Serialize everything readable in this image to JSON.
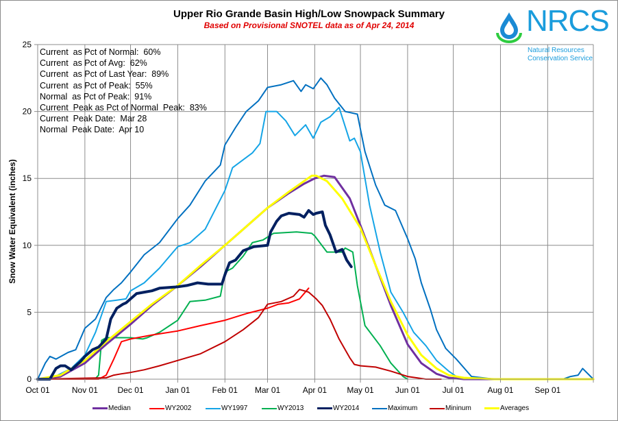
{
  "header": {
    "title": "Upper Rio Grande Basin High/Low Snowpack Summary",
    "subtitle": "Based on Provisional SNOTEL data as of Apr 24, 2014"
  },
  "logo": {
    "name": "NRCS",
    "line1": "Natural Resources",
    "line2": "Conservation Service",
    "drop_color": "#1a8ad4",
    "arc_color": "#2ecc40"
  },
  "stats": [
    "Current  as Pct of Normal:  60%",
    "Current  as Pct of Avg:  62%",
    "Current  as Pct of Last Year:  89%",
    "Current  as Pct of Peak:  55%",
    "Normal  as Pct of Peak:  91%",
    "Current  Peak as Pct of Normal  Peak:  83%",
    "Current  Peak Date:  Mar 28",
    "Normal  Peak Date:  Apr 10"
  ],
  "chart_data": {
    "type": "line",
    "title": "Upper Rio Grande Basin High/Low Snowpack Summary",
    "subtitle": "Based on Provisional SNOTEL data as of Apr 24, 2014",
    "xlabel": "",
    "ylabel": "Snow Water Equivalent (inches)",
    "ylim": [
      0,
      25
    ],
    "yticks": [
      "0",
      "5",
      "10",
      "15",
      "20",
      "25"
    ],
    "xlim_days": [
      0,
      365
    ],
    "xticks": [
      {
        "label": "Oct 01",
        "day": 0
      },
      {
        "label": "Nov 01",
        "day": 31
      },
      {
        "label": "Dec 01",
        "day": 61
      },
      {
        "label": "Jan 01",
        "day": 92
      },
      {
        "label": "Feb 01",
        "day": 123
      },
      {
        "label": "Mar 01",
        "day": 151
      },
      {
        "label": "Apr 01",
        "day": 182
      },
      {
        "label": "May 01",
        "day": 212
      },
      {
        "label": "Jun 01",
        "day": 243
      },
      {
        "label": "Jul 01",
        "day": 273
      },
      {
        "label": "Aug 01",
        "day": 304
      },
      {
        "label": "Sep 01",
        "day": 335
      }
    ],
    "grid": true,
    "legend_position": "bottom",
    "series": [
      {
        "name": "Median",
        "color": "#7030a0",
        "width": 3,
        "x": [
          0,
          15,
          31,
          45,
          61,
          75,
          92,
          107,
          123,
          137,
          151,
          165,
          175,
          182,
          188,
          195,
          205,
          212,
          222,
          232,
          243,
          252,
          262,
          270,
          280,
          300,
          365
        ],
        "y": [
          0,
          0.2,
          1.2,
          2.6,
          4.1,
          5.5,
          7.0,
          8.4,
          10.0,
          11.4,
          12.8,
          13.9,
          14.6,
          15.0,
          15.2,
          15.1,
          13.5,
          11.5,
          8.5,
          5.5,
          2.6,
          1.2,
          0.4,
          0.1,
          0,
          0,
          0
        ]
      },
      {
        "name": "WY2002",
        "color": "#ff0000",
        "width": 2,
        "x": [
          0,
          40,
          45,
          50,
          55,
          61,
          75,
          92,
          107,
          123,
          137,
          151,
          158,
          165,
          172,
          178
        ],
        "y": [
          0,
          0,
          0.3,
          1.5,
          2.8,
          3.0,
          3.3,
          3.6,
          4.0,
          4.4,
          4.9,
          5.3,
          5.6,
          5.7,
          6.0,
          6.8
        ]
      },
      {
        "name": "WY1997",
        "color": "#14a4e6",
        "width": 2,
        "x": [
          0,
          8,
          15,
          22,
          31,
          38,
          45,
          52,
          58,
          61,
          70,
          80,
          92,
          100,
          110,
          123,
          128,
          135,
          141,
          146,
          150,
          157,
          163,
          169,
          176,
          181,
          186,
          192,
          198,
          205,
          208,
          212,
          218,
          225,
          232,
          240,
          247,
          255,
          262,
          270,
          275,
          280
        ],
        "y": [
          0,
          0,
          0.4,
          0.8,
          1.8,
          3.5,
          5.8,
          5.9,
          6.0,
          6.6,
          7.2,
          8.3,
          9.9,
          10.2,
          11.2,
          14.1,
          15.8,
          16.4,
          16.9,
          17.6,
          20.0,
          20.0,
          19.3,
          18.2,
          19.0,
          18.0,
          19.2,
          19.6,
          20.3,
          17.8,
          18.0,
          17.0,
          13.0,
          9.5,
          6.5,
          5.0,
          3.5,
          2.5,
          1.4,
          0.6,
          0.2,
          0
        ]
      },
      {
        "name": "WY2013",
        "color": "#00b050",
        "width": 2,
        "x": [
          0,
          30,
          38,
          40,
          42,
          45,
          61,
          69,
          72,
          80,
          92,
          100,
          110,
          120,
          123,
          128,
          135,
          141,
          148,
          155,
          170,
          180,
          182,
          190,
          195,
          200,
          202,
          207,
          210,
          215,
          225,
          232,
          240,
          243
        ],
        "y": [
          0,
          0,
          0.05,
          0.3,
          2.9,
          3.1,
          3.1,
          3.0,
          3.1,
          3.5,
          4.4,
          5.8,
          5.9,
          6.2,
          8.0,
          8.3,
          9.2,
          10.2,
          10.4,
          10.9,
          11.0,
          10.9,
          10.7,
          9.5,
          9.5,
          9.5,
          9.8,
          9.5,
          7.0,
          4.0,
          2.5,
          1.2,
          0.2,
          0
        ]
      },
      {
        "name": "WY2014",
        "color": "#002060",
        "width": 4,
        "x": [
          0,
          8,
          12,
          15,
          18,
          22,
          28,
          31,
          36,
          40,
          45,
          48,
          52,
          56,
          58,
          61,
          65,
          70,
          75,
          80,
          92,
          98,
          105,
          112,
          118,
          121,
          123,
          126,
          130,
          135,
          142,
          151,
          153,
          157,
          160,
          165,
          172,
          175,
          178,
          181,
          183,
          187,
          189,
          192,
          196,
          200,
          203,
          206
        ],
        "y": [
          0,
          0,
          0.8,
          1.0,
          1.0,
          0.7,
          1.3,
          1.7,
          2.2,
          2.4,
          3.0,
          4.5,
          5.3,
          5.6,
          5.7,
          6.0,
          6.4,
          6.5,
          6.6,
          6.8,
          6.9,
          7.0,
          7.2,
          7.1,
          7.1,
          7.1,
          7.8,
          8.7,
          8.9,
          9.6,
          9.9,
          10.0,
          11.0,
          11.8,
          12.2,
          12.4,
          12.3,
          12.1,
          12.6,
          12.3,
          12.4,
          12.5,
          11.5,
          10.8,
          9.5,
          9.7,
          8.9,
          8.4
        ]
      },
      {
        "name": "Maximum",
        "color": "#0070c0",
        "width": 2,
        "x": [
          0,
          5,
          8,
          12,
          20,
          25,
          31,
          38,
          45,
          50,
          55,
          61,
          70,
          80,
          92,
          100,
          110,
          120,
          123,
          130,
          137,
          145,
          151,
          160,
          168,
          173,
          176,
          181,
          186,
          190,
          195,
          202,
          210,
          215,
          222,
          228,
          235,
          243,
          248,
          252,
          258,
          262,
          268,
          275,
          285,
          300,
          304,
          320,
          340,
          345,
          350,
          355,
          358,
          365
        ],
        "y": [
          0,
          1.2,
          1.7,
          1.5,
          2.0,
          2.2,
          3.8,
          4.5,
          6.1,
          6.7,
          7.2,
          8.0,
          9.3,
          10.2,
          12.0,
          13.0,
          14.8,
          16.0,
          17.5,
          18.8,
          20.0,
          20.8,
          21.8,
          22.0,
          22.3,
          21.5,
          22.0,
          21.7,
          22.5,
          22.0,
          21.0,
          20.0,
          19.8,
          17.0,
          14.5,
          13.0,
          12.6,
          10.5,
          9.0,
          7.2,
          5.2,
          3.7,
          2.3,
          1.5,
          0.2,
          0,
          0,
          0,
          0,
          0,
          0.2,
          0.3,
          0.8,
          0
        ]
      },
      {
        "name": "Mininum",
        "color": "#c00000",
        "width": 2,
        "x": [
          0,
          45,
          50,
          55,
          61,
          70,
          80,
          92,
          107,
          123,
          135,
          145,
          151,
          160,
          168,
          172,
          178,
          183,
          187,
          192,
          198,
          205,
          208,
          212,
          222,
          232,
          243,
          255,
          265
        ],
        "y": [
          0,
          0.1,
          0.3,
          0.4,
          0.5,
          0.7,
          1.0,
          1.4,
          1.9,
          2.8,
          3.7,
          4.6,
          5.6,
          5.8,
          6.2,
          6.7,
          6.5,
          6.0,
          5.5,
          4.5,
          3.0,
          1.6,
          1.1,
          1.0,
          0.9,
          0.6,
          0.2,
          0,
          0
        ]
      },
      {
        "name": "Averages",
        "color": "#ffff00",
        "width": 3,
        "x": [
          0,
          15,
          31,
          45,
          61,
          75,
          92,
          107,
          123,
          137,
          151,
          165,
          175,
          180,
          183,
          190,
          200,
          212,
          222,
          232,
          243,
          252,
          262,
          270,
          280,
          300,
          365
        ],
        "y": [
          0,
          0.3,
          1.4,
          2.8,
          4.3,
          5.6,
          7.0,
          8.5,
          10.0,
          11.4,
          12.8,
          14.0,
          14.8,
          15.2,
          15.2,
          14.8,
          13.5,
          11.3,
          8.5,
          5.8,
          3.3,
          1.8,
          0.8,
          0.3,
          0.1,
          0,
          0
        ]
      }
    ]
  },
  "legend": {
    "items": [
      {
        "label": "Median",
        "color": "#7030a0"
      },
      {
        "label": "WY2002",
        "color": "#ff0000"
      },
      {
        "label": "WY1997",
        "color": "#14a4e6"
      },
      {
        "label": "WY2013",
        "color": "#00b050"
      },
      {
        "label": "WY2014",
        "color": "#002060"
      },
      {
        "label": "Maximum",
        "color": "#0070c0"
      },
      {
        "label": "Mininum",
        "color": "#c00000"
      },
      {
        "label": "Averages",
        "color": "#ffff00"
      }
    ]
  }
}
